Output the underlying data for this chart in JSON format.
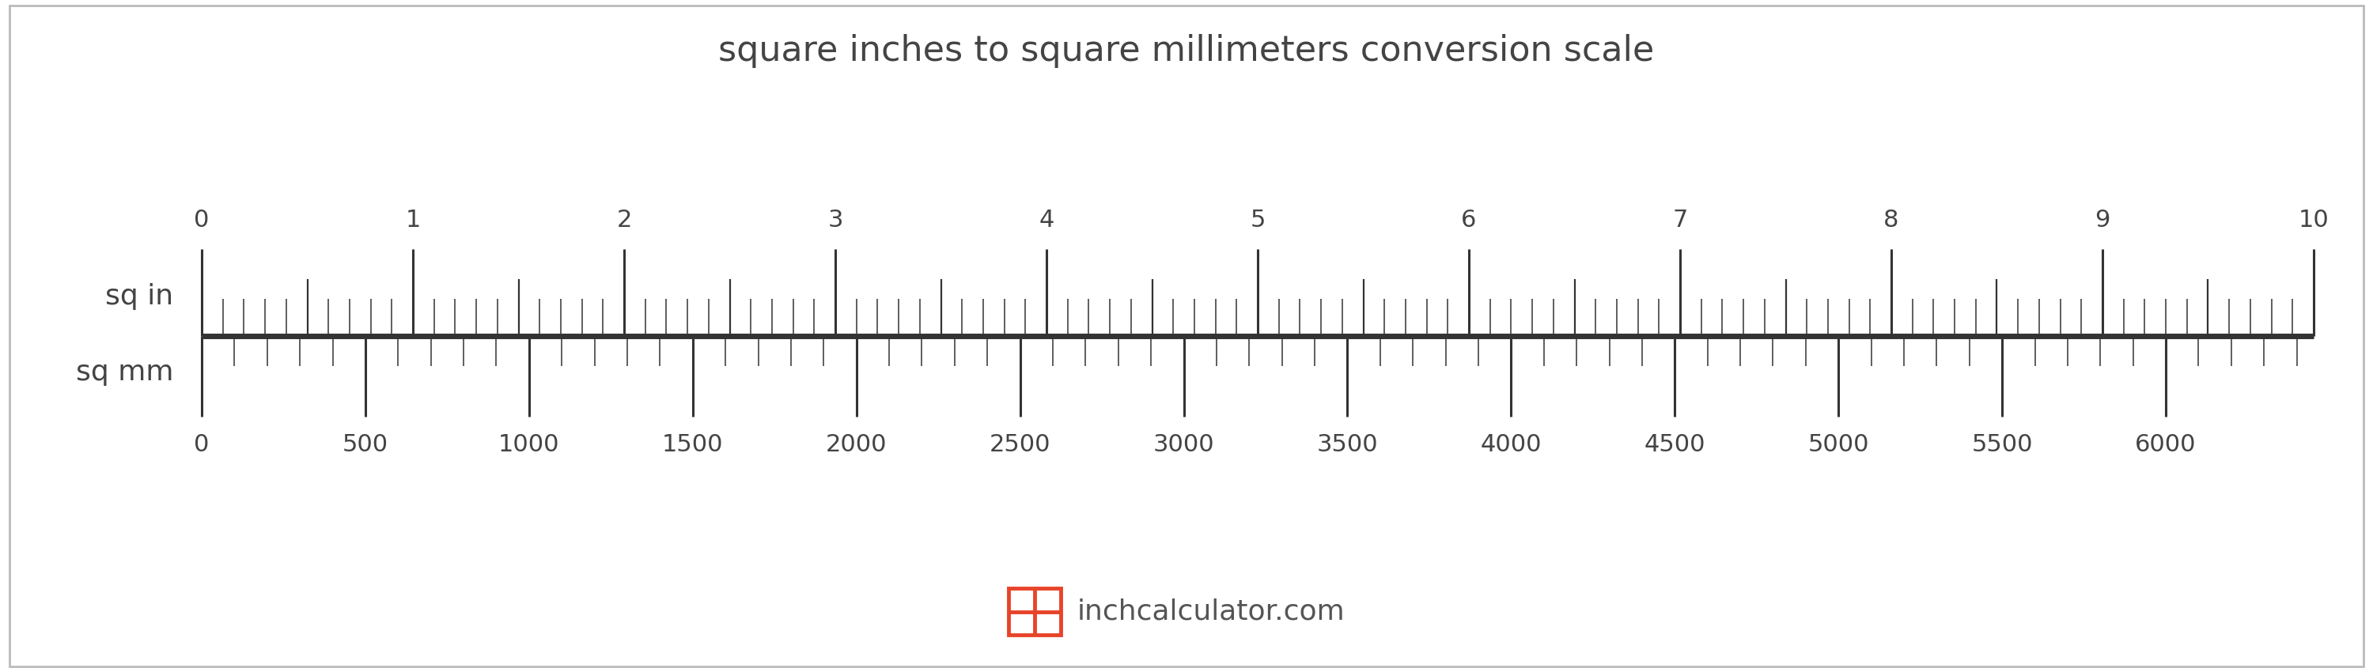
{
  "title": "square inches to square millimeters conversion scale",
  "title_fontsize": 32,
  "title_color": "#444444",
  "background_color": "#ffffff",
  "border_color": "#bbbbbb",
  "ruler_color": "#333333",
  "label_color": "#444444",
  "sq_in_label": "sq in",
  "sq_mm_label": "sq mm",
  "sq_in_major_ticks": [
    0,
    1,
    2,
    3,
    4,
    5,
    6,
    7,
    8,
    9,
    10
  ],
  "sq_in_max": 10,
  "sq_mm_major_ticks": [
    0,
    500,
    1000,
    1500,
    2000,
    2500,
    3000,
    3500,
    4000,
    4500,
    5000,
    5500,
    6000
  ],
  "conversion_factor": 645.16,
  "watermark_text": "inchcalculator.com",
  "watermark_color": "#555555",
  "watermark_icon_color": "#e8442a",
  "tick_color": "#333333",
  "axis_linewidth": 5,
  "label_fontsize": 26,
  "tick_label_fontsize": 22,
  "watermark_fontsize": 26
}
